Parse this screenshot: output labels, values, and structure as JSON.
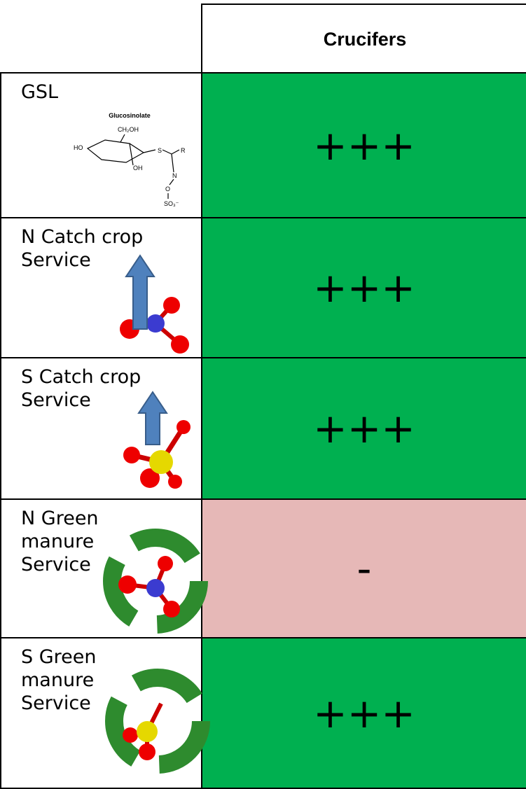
{
  "table": {
    "column_header": "Crucifers",
    "rows": [
      {
        "label_lines": [
          "GSL"
        ],
        "value": "+++",
        "color": "#00b050"
      },
      {
        "label_lines": [
          "N Catch crop",
          "Service"
        ],
        "value": "+++",
        "color": "#00b050"
      },
      {
        "label_lines": [
          "S Catch crop",
          "Service"
        ],
        "value": "+++",
        "color": "#00b050"
      },
      {
        "label_lines": [
          "N Green",
          "manure",
          "Service"
        ],
        "value": "-",
        "color": "#e6b8b7"
      },
      {
        "label_lines": [
          "S Green",
          "manure",
          "Service"
        ],
        "value": "+++",
        "color": "#00b050"
      }
    ]
  },
  "structure": {
    "title": "Glucosinolate",
    "ch2oh": "CH₂OH",
    "ho": "HO",
    "oh": "OH",
    "s": "S",
    "r": "R",
    "n": "N",
    "o": "O",
    "so3": "SO₃⁻"
  }
}
